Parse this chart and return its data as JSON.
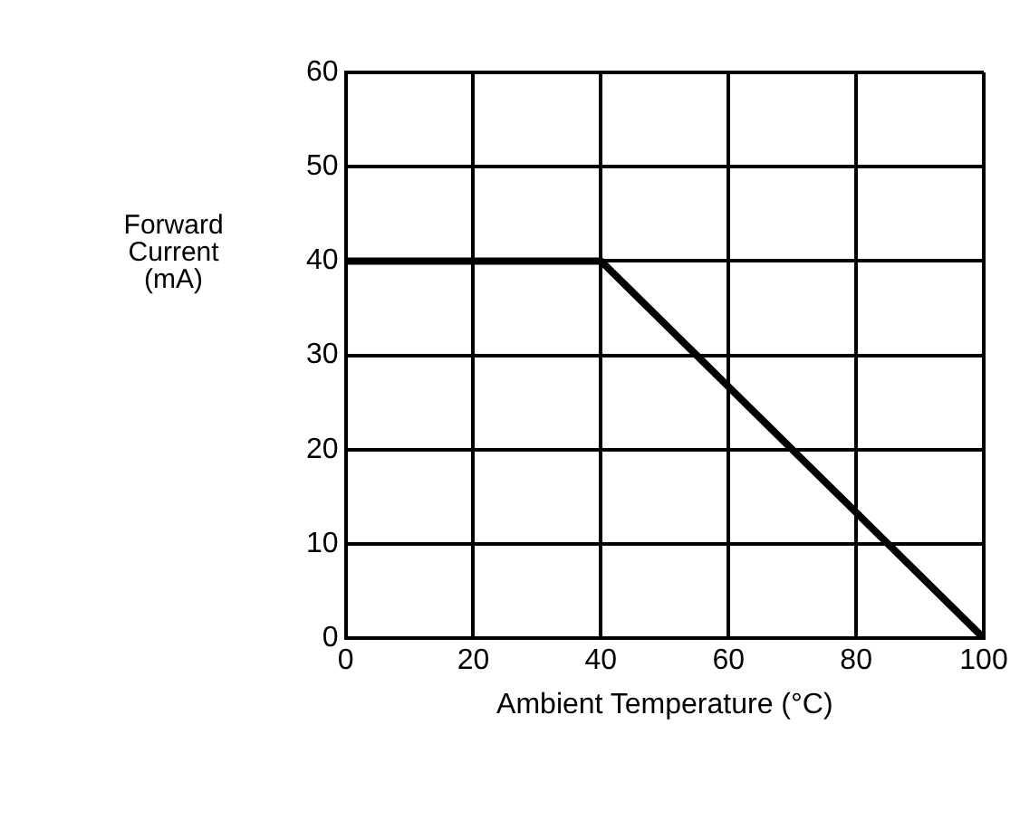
{
  "chart_data": {
    "type": "line",
    "xlabel": "Ambient Temperature (°C)",
    "ylabel": "Forward Current (mA)",
    "x": [
      0,
      40,
      100
    ],
    "series": [
      {
        "color": "#000000",
        "values": [
          40,
          40,
          0
        ]
      }
    ],
    "xlim": [
      0,
      100
    ],
    "xticks": [
      0,
      20,
      40,
      60,
      80,
      100
    ],
    "ylim": [
      0,
      60
    ],
    "yticks": [
      0,
      10,
      20,
      30,
      40,
      50,
      60
    ],
    "grid": true,
    "legend": false,
    "marker": "none",
    "line_style": "solid"
  }
}
